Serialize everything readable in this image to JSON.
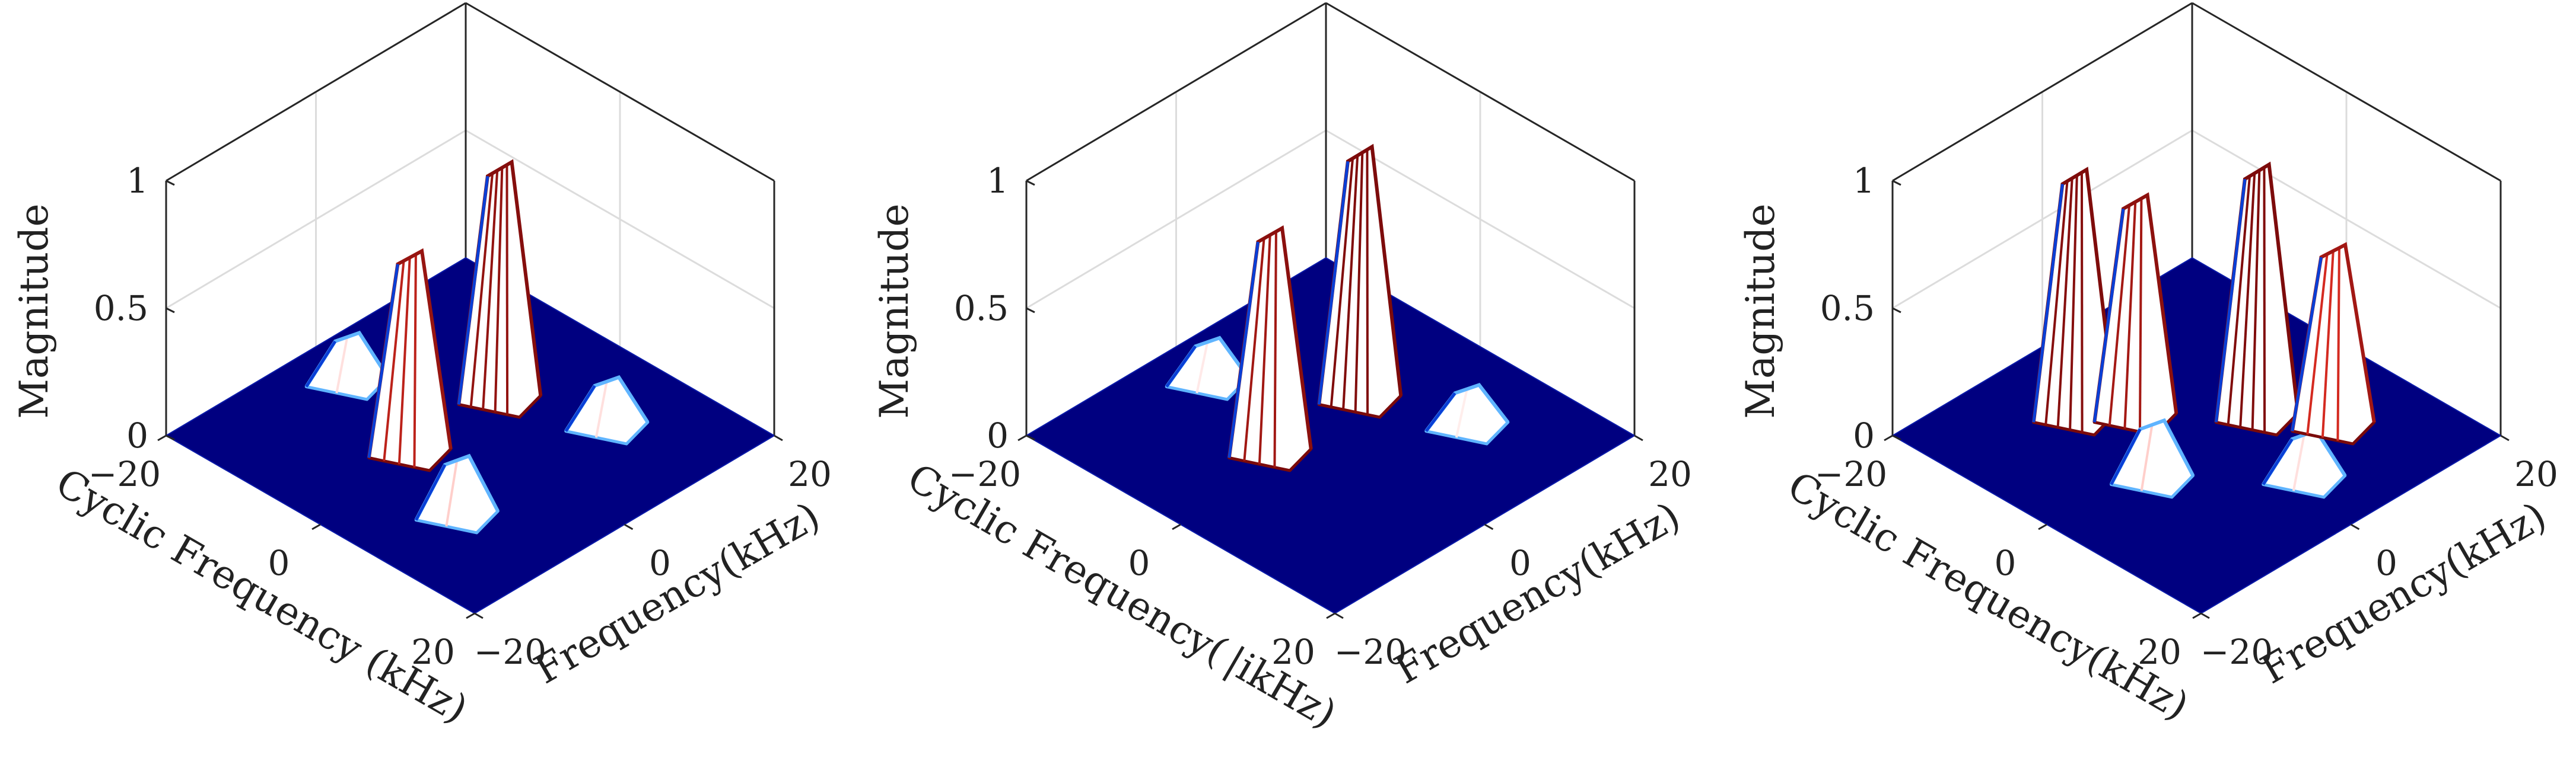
{
  "chart_data": [
    {
      "type": "surface3d",
      "zlabel": "Magnitude",
      "xlabel": "Cyclic Frequency (kHz)",
      "ylabel": "Frequency(kHz)",
      "xlim": [
        -20,
        20
      ],
      "ylim": [
        -20,
        20
      ],
      "zlim": [
        0,
        1
      ],
      "xticks": [
        "−20",
        "0",
        "20"
      ],
      "yticks": [
        "−20",
        "0",
        "20"
      ],
      "zticks": [
        "0",
        "0.5",
        "1"
      ],
      "grid": true,
      "colormap": [
        "#000080",
        "#0a3fd6",
        "#5fb4ff",
        "#ffffff",
        "#ff3a2a",
        "#7a0a0a"
      ],
      "peaks": [
        {
          "x": -2,
          "y": -6,
          "z": 0.78
        },
        {
          "x": -2,
          "y": 6,
          "z": 0.92
        },
        {
          "x": -14,
          "y": -2,
          "z": 0.18
        },
        {
          "x": 8,
          "y": -10,
          "z": 0.22
        },
        {
          "x": 8,
          "y": 10,
          "z": 0.18
        }
      ]
    },
    {
      "type": "surface3d",
      "zlabel": "Magnitude",
      "xlabel": "Cyclic Frequency( |ikHz)",
      "ylabel": "Frequency(kHz)",
      "xlim": [
        -20,
        20
      ],
      "ylim": [
        -20,
        20
      ],
      "zlim": [
        0,
        1
      ],
      "xticks": [
        "−20",
        "0",
        "20"
      ],
      "yticks": [
        "−20",
        "0",
        "20"
      ],
      "zticks": [
        "0",
        "0.5",
        "1"
      ],
      "grid": true,
      "colormap": [
        "#000080",
        "#0a3fd6",
        "#5fb4ff",
        "#ffffff",
        "#ff3a2a",
        "#7a0a0a"
      ],
      "peaks": [
        {
          "x": -2,
          "y": -6,
          "z": 0.87
        },
        {
          "x": -2,
          "y": 6,
          "z": 0.98
        },
        {
          "x": -14,
          "y": -2,
          "z": 0.16
        },
        {
          "x": 8,
          "y": 10,
          "z": 0.15
        }
      ]
    },
    {
      "type": "surface3d",
      "zlabel": "Magnitude",
      "xlabel": "Cyclic Frequency(kHz)",
      "ylabel": "Frequency(kHz)",
      "xlim": [
        -20,
        20
      ],
      "ylim": [
        -20,
        20
      ],
      "zlim": [
        0,
        1
      ],
      "xticks": [
        "−20",
        "0",
        "20"
      ],
      "yticks": [
        "−20",
        "0",
        "20"
      ],
      "zticks": [
        "0",
        "0.5",
        "1"
      ],
      "grid": true,
      "colormap": [
        "#000080",
        "#0a3fd6",
        "#5fb4ff",
        "#ffffff",
        "#ff3a2a",
        "#7a0a0a"
      ],
      "peaks": [
        {
          "x": -10,
          "y": -6,
          "z": 0.96
        },
        {
          "x": -6,
          "y": -2,
          "z": 0.86
        },
        {
          "x": 2,
          "y": 6,
          "z": 0.98
        },
        {
          "x": 8,
          "y": 10,
          "z": 0.7
        },
        {
          "x": 2,
          "y": -8,
          "z": 0.22
        },
        {
          "x": 12,
          "y": 2,
          "z": 0.18
        }
      ]
    }
  ]
}
